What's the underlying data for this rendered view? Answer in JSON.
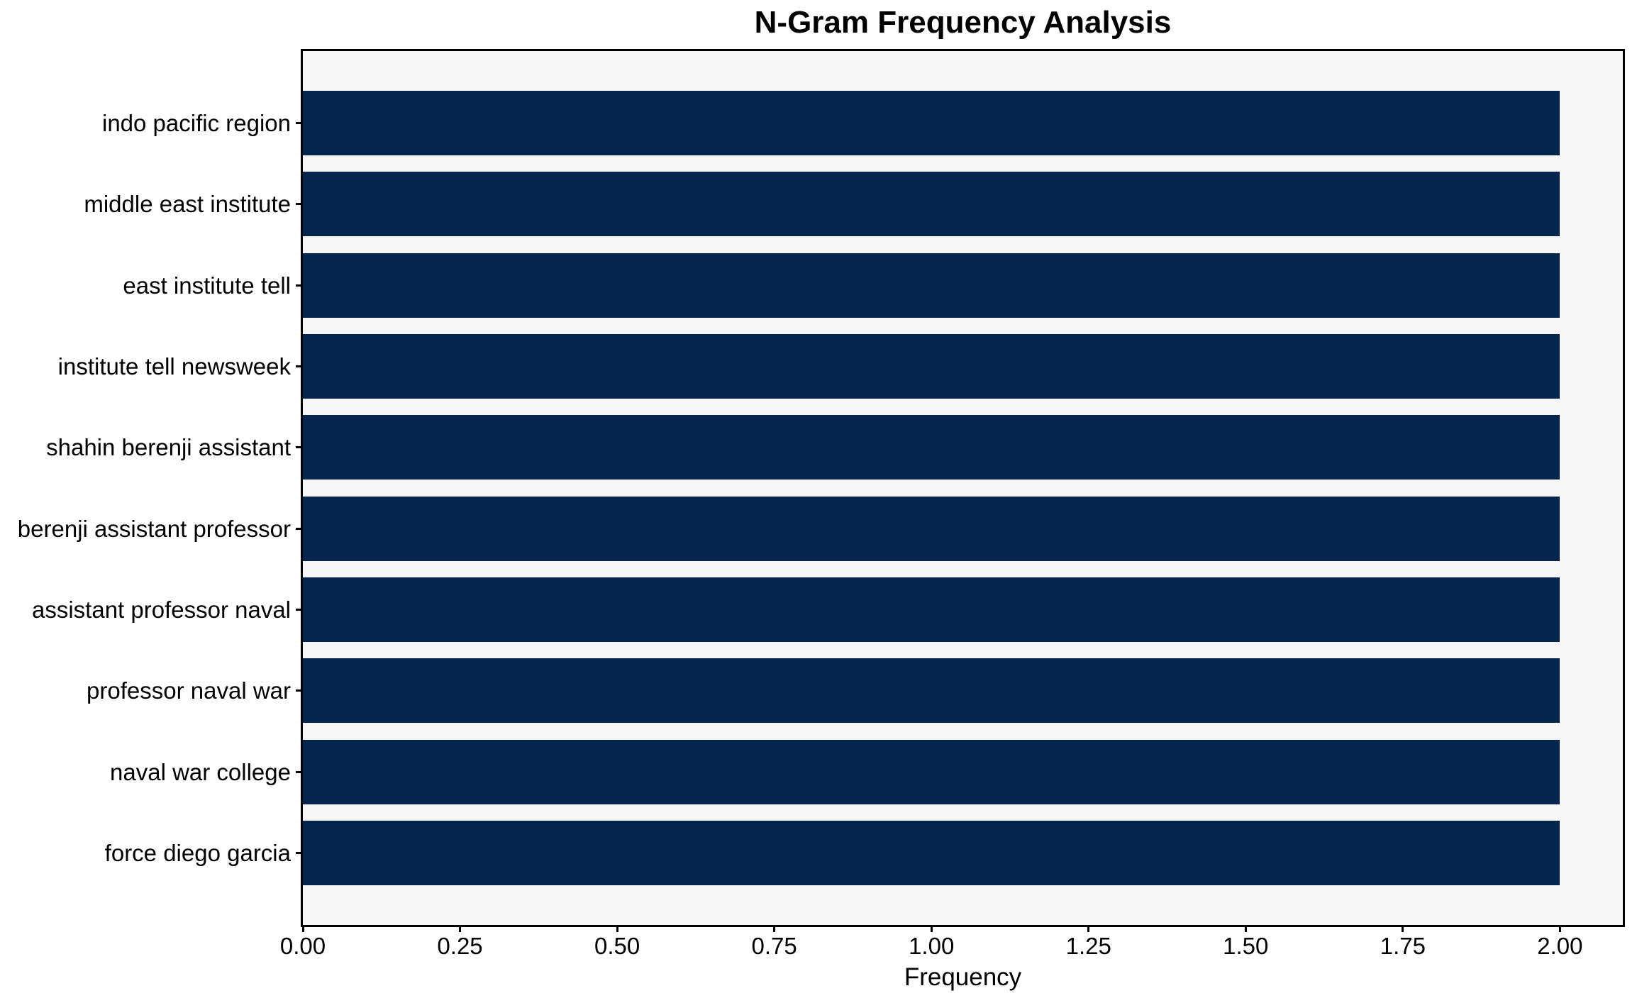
{
  "chart_data": {
    "type": "bar",
    "orientation": "horizontal",
    "title": "N-Gram Frequency Analysis",
    "xlabel": "Frequency",
    "ylabel": "",
    "categories": [
      "indo pacific region",
      "middle east institute",
      "east institute tell",
      "institute tell newsweek",
      "shahin berenji assistant",
      "berenji assistant professor",
      "assistant professor naval",
      "professor naval war",
      "naval war college",
      "force diego garcia"
    ],
    "values": [
      2,
      2,
      2,
      2,
      2,
      2,
      2,
      2,
      2,
      2
    ],
    "xlim": [
      0,
      2.1
    ],
    "xtick_labels": [
      "0.00",
      "0.25",
      "0.50",
      "0.75",
      "1.00",
      "1.25",
      "1.50",
      "1.75",
      "2.00"
    ],
    "xtick_values": [
      0,
      0.25,
      0.5,
      0.75,
      1.0,
      1.25,
      1.5,
      1.75,
      2.0
    ],
    "grid": false,
    "legend": null,
    "colors": {
      "bar": "#03254e",
      "plot_background": "#f6f6f7",
      "figure_background": "#ffffff",
      "frame": "#000000",
      "text": "#000000"
    }
  }
}
